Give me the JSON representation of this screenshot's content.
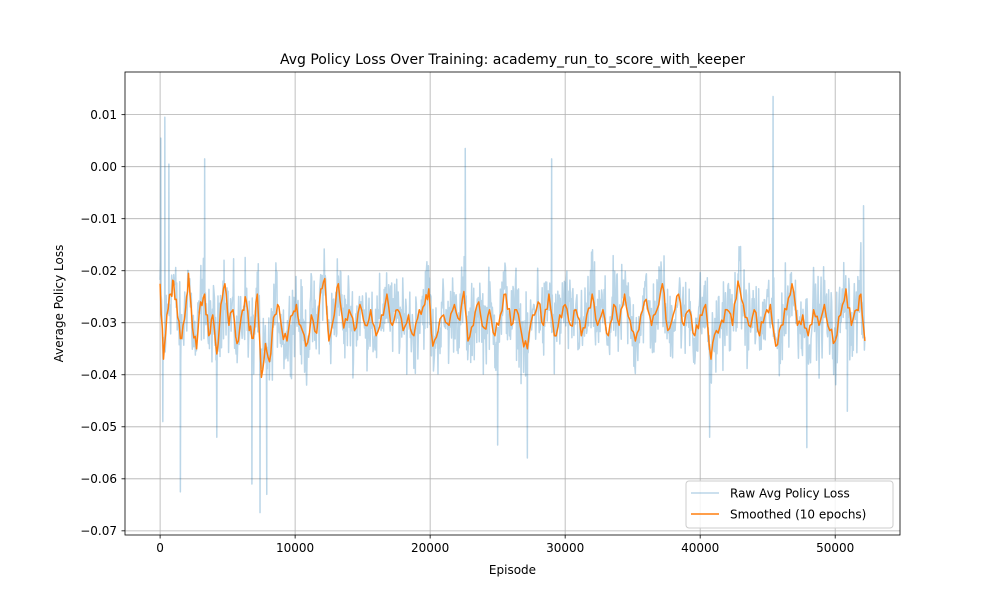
{
  "chart_data": {
    "type": "line",
    "title": "Avg Policy Loss Over Training: academy_run_to_score_with_keeper",
    "xlabel": "Episode",
    "ylabel": "Average Policy Loss",
    "xlim": [
      -2600,
      54800
    ],
    "ylim": [
      -0.0708,
      0.0182
    ],
    "x_ticks": [
      0,
      10000,
      20000,
      30000,
      40000,
      50000
    ],
    "x_tick_labels": [
      "0",
      "10000",
      "20000",
      "30000",
      "40000",
      "50000"
    ],
    "y_ticks": [
      0.01,
      0.0,
      -0.01,
      -0.02,
      -0.03,
      -0.04,
      -0.05,
      -0.06,
      -0.07
    ],
    "y_tick_labels": [
      "0.01",
      "0.00",
      "−0.01",
      "−0.02",
      "−0.03",
      "−0.04",
      "−0.05",
      "−0.06",
      "−0.07"
    ],
    "grid": true,
    "legend_position": "lower-right",
    "x_range": [
      0,
      52200
    ],
    "series": [
      {
        "name": "Raw Avg Policy Loss",
        "color": "#1f77b4",
        "alpha": 0.3,
        "noise_amplitude": 0.0075,
        "spikes": [
          {
            "x": 50,
            "y": 0.0055
          },
          {
            "x": 200,
            "y": -0.049
          },
          {
            "x": 350,
            "y": 0.0095
          },
          {
            "x": 650,
            "y": 0.0005
          },
          {
            "x": 1500,
            "y": -0.0625
          },
          {
            "x": 3300,
            "y": 0.0015
          },
          {
            "x": 4200,
            "y": -0.052
          },
          {
            "x": 6800,
            "y": -0.061
          },
          {
            "x": 7400,
            "y": -0.0665
          },
          {
            "x": 7900,
            "y": -0.063
          },
          {
            "x": 22600,
            "y": 0.0035
          },
          {
            "x": 25000,
            "y": -0.0535
          },
          {
            "x": 27200,
            "y": -0.056
          },
          {
            "x": 29000,
            "y": 0.0015
          },
          {
            "x": 40700,
            "y": -0.052
          },
          {
            "x": 45400,
            "y": 0.0135
          },
          {
            "x": 47900,
            "y": -0.054
          },
          {
            "x": 50900,
            "y": -0.047
          },
          {
            "x": 52100,
            "y": -0.0075
          }
        ]
      },
      {
        "name": "Smoothed (10 epochs)",
        "color": "#ff7f0e",
        "window_epochs": 10,
        "points": [
          [
            0,
            -0.0225
          ],
          [
            250,
            -0.037
          ],
          [
            500,
            -0.0285
          ],
          [
            800,
            -0.0245
          ],
          [
            1000,
            -0.022
          ],
          [
            1300,
            -0.029
          ],
          [
            1600,
            -0.033
          ],
          [
            1900,
            -0.027
          ],
          [
            2100,
            -0.0205
          ],
          [
            2400,
            -0.031
          ],
          [
            2700,
            -0.035
          ],
          [
            3000,
            -0.026
          ],
          [
            3300,
            -0.0245
          ],
          [
            3600,
            -0.0325
          ],
          [
            3900,
            -0.0285
          ],
          [
            4200,
            -0.036
          ],
          [
            4500,
            -0.0265
          ],
          [
            4800,
            -0.0225
          ],
          [
            5100,
            -0.0305
          ],
          [
            5400,
            -0.0275
          ],
          [
            5700,
            -0.034
          ],
          [
            6000,
            -0.029
          ],
          [
            6300,
            -0.025
          ],
          [
            6600,
            -0.0315
          ],
          [
            6900,
            -0.033
          ],
          [
            7200,
            -0.0245
          ],
          [
            7500,
            -0.0405
          ],
          [
            7800,
            -0.034
          ],
          [
            8100,
            -0.0375
          ],
          [
            8400,
            -0.029
          ],
          [
            8700,
            -0.0265
          ],
          [
            9000,
            -0.031
          ],
          [
            9400,
            -0.0335
          ],
          [
            9800,
            -0.0285
          ],
          [
            10100,
            -0.0265
          ],
          [
            10400,
            -0.0305
          ],
          [
            10800,
            -0.0345
          ],
          [
            11200,
            -0.0285
          ],
          [
            11600,
            -0.032
          ],
          [
            11900,
            -0.0235
          ],
          [
            12200,
            -0.0215
          ],
          [
            12500,
            -0.0335
          ],
          [
            12900,
            -0.0285
          ],
          [
            13200,
            -0.0225
          ],
          [
            13600,
            -0.031
          ],
          [
            14000,
            -0.0275
          ],
          [
            14400,
            -0.0315
          ],
          [
            14800,
            -0.0265
          ],
          [
            15200,
            -0.0305
          ],
          [
            15600,
            -0.0275
          ],
          [
            16000,
            -0.0325
          ],
          [
            16400,
            -0.0285
          ],
          [
            16800,
            -0.0245
          ],
          [
            17200,
            -0.0305
          ],
          [
            17600,
            -0.0275
          ],
          [
            18000,
            -0.0315
          ],
          [
            18400,
            -0.0285
          ],
          [
            18800,
            -0.0325
          ],
          [
            19200,
            -0.0275
          ],
          [
            19600,
            -0.0265
          ],
          [
            19900,
            -0.0235
          ],
          [
            20200,
            -0.0345
          ],
          [
            20600,
            -0.0315
          ],
          [
            21000,
            -0.0285
          ],
          [
            21400,
            -0.0305
          ],
          [
            21800,
            -0.0265
          ],
          [
            22200,
            -0.0295
          ],
          [
            22500,
            -0.024
          ],
          [
            22800,
            -0.0335
          ],
          [
            23200,
            -0.0305
          ],
          [
            23600,
            -0.026
          ],
          [
            24000,
            -0.031
          ],
          [
            24400,
            -0.0275
          ],
          [
            24800,
            -0.0325
          ],
          [
            25200,
            -0.0285
          ],
          [
            25600,
            -0.0245
          ],
          [
            26000,
            -0.0305
          ],
          [
            26400,
            -0.0275
          ],
          [
            26800,
            -0.0325
          ],
          [
            27200,
            -0.035
          ],
          [
            27600,
            -0.0285
          ],
          [
            28000,
            -0.026
          ],
          [
            28400,
            -0.0305
          ],
          [
            28800,
            -0.0245
          ],
          [
            29200,
            -0.0325
          ],
          [
            29600,
            -0.0285
          ],
          [
            30000,
            -0.0265
          ],
          [
            30400,
            -0.0305
          ],
          [
            30800,
            -0.0275
          ],
          [
            31200,
            -0.0325
          ],
          [
            31600,
            -0.0285
          ],
          [
            32000,
            -0.0245
          ],
          [
            32400,
            -0.0305
          ],
          [
            32800,
            -0.0275
          ],
          [
            33200,
            -0.0325
          ],
          [
            33600,
            -0.0265
          ],
          [
            34000,
            -0.0305
          ],
          [
            34400,
            -0.0245
          ],
          [
            34800,
            -0.0295
          ],
          [
            35200,
            -0.0335
          ],
          [
            35600,
            -0.0285
          ],
          [
            36000,
            -0.0255
          ],
          [
            36400,
            -0.0305
          ],
          [
            36800,
            -0.0275
          ],
          [
            37200,
            -0.0225
          ],
          [
            37600,
            -0.0315
          ],
          [
            38000,
            -0.0285
          ],
          [
            38400,
            -0.0245
          ],
          [
            38800,
            -0.0305
          ],
          [
            39200,
            -0.0275
          ],
          [
            39600,
            -0.0325
          ],
          [
            40000,
            -0.0285
          ],
          [
            40400,
            -0.0265
          ],
          [
            40800,
            -0.037
          ],
          [
            41200,
            -0.0315
          ],
          [
            41600,
            -0.0295
          ],
          [
            42000,
            -0.0275
          ],
          [
            42400,
            -0.0305
          ],
          [
            42800,
            -0.022
          ],
          [
            43200,
            -0.0265
          ],
          [
            43600,
            -0.0305
          ],
          [
            44000,
            -0.0275
          ],
          [
            44400,
            -0.0325
          ],
          [
            44800,
            -0.0285
          ],
          [
            45200,
            -0.0265
          ],
          [
            45600,
            -0.0345
          ],
          [
            46000,
            -0.0305
          ],
          [
            46400,
            -0.0275
          ],
          [
            46800,
            -0.0225
          ],
          [
            47200,
            -0.0305
          ],
          [
            47600,
            -0.0285
          ],
          [
            48000,
            -0.0325
          ],
          [
            48400,
            -0.0275
          ],
          [
            48800,
            -0.0305
          ],
          [
            49200,
            -0.0265
          ],
          [
            49600,
            -0.0315
          ],
          [
            50000,
            -0.0335
          ],
          [
            50400,
            -0.0285
          ],
          [
            50800,
            -0.0235
          ],
          [
            51200,
            -0.0305
          ],
          [
            51600,
            -0.0275
          ],
          [
            51900,
            -0.0245
          ],
          [
            52200,
            -0.0335
          ]
        ]
      }
    ]
  }
}
